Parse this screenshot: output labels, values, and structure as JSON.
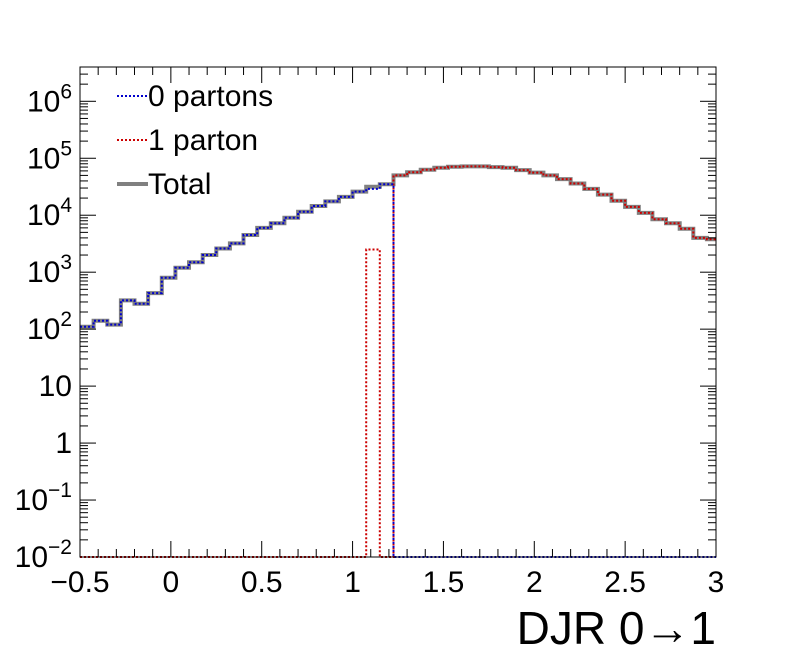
{
  "chart_data": {
    "type": "line",
    "title": "",
    "xlabel": "DJR 0→1",
    "ylabel": "",
    "xlim": [
      -0.5,
      3
    ],
    "ylim": [
      0.01,
      4000000
    ],
    "yscale": "log",
    "grid": false,
    "legend_position": "top-left",
    "x_ticks": [
      "−0.5",
      "0",
      "0.5",
      "1",
      "1.5",
      "2",
      "2.5",
      "3"
    ],
    "x_tick_values": [
      -0.5,
      0,
      0.5,
      1,
      1.5,
      2,
      2.5,
      3
    ],
    "y_ticks": [
      {
        "base": "10",
        "exp": "−2",
        "value": 0.01
      },
      {
        "base": "10",
        "exp": "−1",
        "value": 0.1
      },
      {
        "base": "1",
        "exp": "",
        "value": 1
      },
      {
        "base": "10",
        "exp": "",
        "value": 10
      },
      {
        "base": "10",
        "exp": "2",
        "value": 100
      },
      {
        "base": "10",
        "exp": "3",
        "value": 1000
      },
      {
        "base": "10",
        "exp": "4",
        "value": 10000
      },
      {
        "base": "10",
        "exp": "5",
        "value": 100000
      },
      {
        "base": "10",
        "exp": "6",
        "value": 1000000
      }
    ],
    "bin_edges": [
      -0.5,
      -0.425,
      -0.35,
      -0.275,
      -0.2,
      -0.125,
      -0.05,
      0.025,
      0.1,
      0.175,
      0.25,
      0.325,
      0.4,
      0.475,
      0.55,
      0.625,
      0.7,
      0.775,
      0.85,
      0.925,
      1.0,
      1.075,
      1.15,
      1.225,
      1.3,
      1.375,
      1.45,
      1.525,
      1.6,
      1.675,
      1.75,
      1.825,
      1.9,
      1.975,
      2.05,
      2.125,
      2.2,
      2.275,
      2.35,
      2.425,
      2.5,
      2.575,
      2.65,
      2.725,
      2.8,
      2.875,
      2.95,
      3.0
    ],
    "series": [
      {
        "name": "0 partons",
        "color": "#0000cc",
        "style": "dotted",
        "values": [
          110,
          140,
          120,
          320,
          280,
          430,
          800,
          1200,
          1500,
          2000,
          2600,
          3200,
          4500,
          6000,
          7200,
          9000,
          11500,
          14500,
          17500,
          21000,
          26000,
          29000,
          35000,
          0.01,
          0.01,
          0.01,
          0.01,
          0.01,
          0.01,
          0.01,
          0.01,
          0.01,
          0.01,
          0.01,
          0.01,
          0.01,
          0.01,
          0.01,
          0.01,
          0.01,
          0.01,
          0.01,
          0.01,
          0.01,
          0.01,
          0.01,
          0.01
        ]
      },
      {
        "name": "1 parton",
        "color": "#cc0000",
        "style": "dotted",
        "values": [
          0.01,
          0.01,
          0.01,
          0.01,
          0.01,
          0.01,
          0.01,
          0.01,
          0.01,
          0.01,
          0.01,
          0.01,
          0.01,
          0.01,
          0.01,
          0.01,
          0.01,
          0.01,
          0.01,
          0.01,
          0.01,
          2500,
          0.01,
          50000,
          57000,
          63000,
          68000,
          71000,
          72000,
          72000,
          70000,
          68000,
          62000,
          56000,
          50000,
          43000,
          36000,
          29000,
          23000,
          18000,
          14000,
          11000,
          8500,
          7200,
          5800,
          4000,
          3800
        ]
      },
      {
        "name": "Total",
        "color": "#808080",
        "style": "solid",
        "values": [
          110,
          140,
          120,
          320,
          280,
          430,
          800,
          1200,
          1500,
          2000,
          2600,
          3200,
          4500,
          6000,
          7200,
          9000,
          11500,
          14500,
          17500,
          21000,
          26000,
          31500,
          35000,
          50000,
          57000,
          63000,
          68000,
          71000,
          72000,
          72000,
          70000,
          68000,
          62000,
          56000,
          50000,
          43000,
          36000,
          29000,
          23000,
          18000,
          14000,
          11000,
          8500,
          7200,
          5800,
          4000,
          3800
        ]
      }
    ]
  }
}
